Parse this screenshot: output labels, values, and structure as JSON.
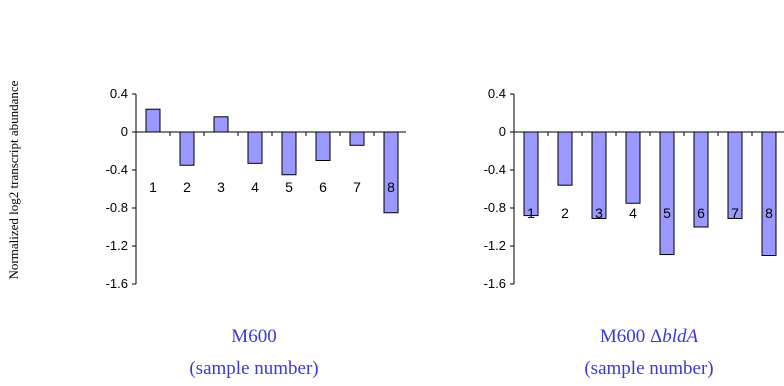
{
  "chart_data": {
    "ylabel": "Normalized log2 transcript abundance",
    "panels": [
      {
        "type": "bar",
        "title_line1": "M600",
        "title_line2": "(sample number)",
        "categories": [
          "1",
          "2",
          "3",
          "4",
          "5",
          "6",
          "7",
          "8"
        ],
        "values": [
          0.24,
          -0.35,
          0.16,
          -0.33,
          -0.45,
          -0.3,
          -0.14,
          -0.85
        ],
        "ylim": [
          -1.6,
          0.4
        ],
        "yticks": [
          "0.4",
          "0",
          "-0.4",
          "-0.8",
          "-1.2",
          "-1.6"
        ],
        "bar_color": "#9999ff"
      },
      {
        "type": "bar",
        "title_line1": "M600 ",
        "title_delta": "Δ",
        "title_italic": "bldA",
        "title_line2": "(sample number)",
        "categories": [
          "1",
          "2",
          "3",
          "4",
          "5",
          "6",
          "7",
          "8"
        ],
        "values": [
          -0.88,
          -0.56,
          -0.91,
          -0.75,
          -1.29,
          -1.0,
          -0.91,
          -1.3
        ],
        "ylim": [
          -1.6,
          0.4
        ],
        "yticks": [
          "0.4",
          "0",
          "-0.4",
          "-0.8",
          "-1.2",
          "-1.6"
        ],
        "bar_color": "#9999ff"
      }
    ]
  }
}
